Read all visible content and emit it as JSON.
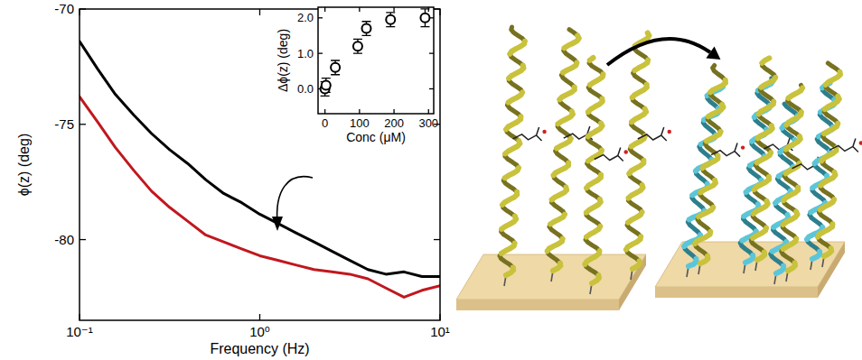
{
  "chart_data": [
    {
      "type": "line",
      "x_label": "Frequency (Hz)",
      "y_label": "ϕ(z) (deg)",
      "log": "x",
      "xlim": [
        0.1,
        10
      ],
      "ylim": [
        -83.5,
        -70
      ],
      "xticks": [
        {
          "value": 0.1,
          "label": "10⁻¹"
        },
        {
          "value": 1,
          "label": "10⁰"
        },
        {
          "value": 10,
          "label": "10¹"
        }
      ],
      "yticks": [
        -80,
        -75,
        -70
      ],
      "x": [
        0.1,
        0.126,
        0.158,
        0.2,
        0.251,
        0.316,
        0.398,
        0.501,
        0.631,
        0.794,
        1,
        1.26,
        1.58,
        2,
        2.51,
        3.16,
        3.98,
        5.01,
        6.31,
        7.94,
        10
      ],
      "series": [
        {
          "color": "#000000",
          "values": [
            -71.4,
            -72.6,
            -73.7,
            -74.6,
            -75.4,
            -76.1,
            -76.7,
            -77.4,
            -78.0,
            -78.4,
            -78.9,
            -79.3,
            -79.7,
            -80.1,
            -80.5,
            -80.9,
            -81.3,
            -81.5,
            -81.4,
            -81.6,
            -81.6
          ]
        },
        {
          "color": "#c0181e",
          "values": [
            -73.8,
            -74.9,
            -76.0,
            -77.0,
            -77.9,
            -78.6,
            -79.2,
            -79.8,
            -80.1,
            -80.4,
            -80.7,
            -80.9,
            -81.1,
            -81.3,
            -81.4,
            -81.5,
            -81.7,
            -82.1,
            -82.5,
            -82.2,
            -82.0
          ]
        }
      ]
    },
    {
      "type": "scatter",
      "x_label": "Conc (μM)",
      "y_label": "Δϕ(z) (deg)",
      "xlim": [
        -20,
        315
      ],
      "ylim": [
        -0.7,
        2.3
      ],
      "xticks": [
        0,
        100,
        200,
        300
      ],
      "yticks": [
        {
          "value": 0,
          "label": "0.0"
        },
        {
          "value": 1,
          "label": "1.0"
        },
        {
          "value": 2,
          "label": "2.0"
        }
      ],
      "marker": "circle",
      "x": [
        0,
        3,
        30,
        95,
        120,
        190,
        290
      ],
      "series": [
        {
          "color": "#000000",
          "values": [
            0.0,
            0.1,
            0.6,
            1.2,
            1.7,
            1.95,
            2.0
          ],
          "errors": [
            0.2,
            0.2,
            0.2,
            0.2,
            0.2,
            0.2,
            0.25
          ]
        }
      ]
    }
  ]
}
